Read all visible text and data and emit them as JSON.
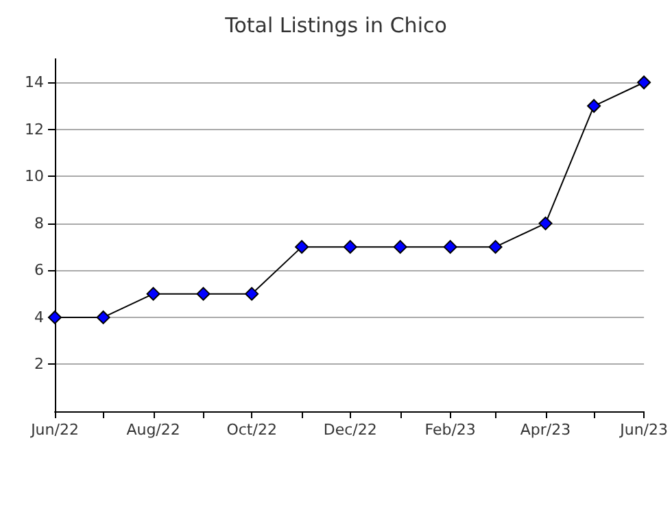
{
  "chart_data": {
    "type": "line",
    "title": "Total Listings in Chico",
    "x": [
      "2022-06",
      "2022-07",
      "2022-08",
      "2022-09",
      "2022-10",
      "2022-11",
      "2022-12",
      "2023-01",
      "2023-02",
      "2023-03",
      "2023-04",
      "2023-05",
      "2023-06"
    ],
    "series": [
      {
        "color": "#0000ff",
        "values": [
          4,
          4,
          5,
          5,
          5,
          7,
          7,
          7,
          7,
          7,
          8,
          13,
          14
        ]
      }
    ],
    "xlim": [
      "2022-06",
      "2023-06"
    ],
    "xticks": [
      {
        "value": "2022-06",
        "label": "Jun/22"
      },
      {
        "value": "2022-07",
        "label": null
      },
      {
        "value": "2022-08",
        "label": "Aug/22"
      },
      {
        "value": "2022-09",
        "label": null
      },
      {
        "value": "2022-10",
        "label": "Oct/22"
      },
      {
        "value": "2022-11",
        "label": null
      },
      {
        "value": "2022-12",
        "label": "Dec/22"
      },
      {
        "value": "2023-01",
        "label": null
      },
      {
        "value": "2023-02",
        "label": "Feb/23"
      },
      {
        "value": "2023-03",
        "label": null
      },
      {
        "value": "2023-04",
        "label": "Apr/23"
      },
      {
        "value": "2023-05",
        "label": null
      },
      {
        "value": "2023-06",
        "label": "Jun/23"
      }
    ],
    "ylim": [
      0,
      15
    ],
    "yticks": [
      2,
      4,
      6,
      8,
      10,
      12,
      14
    ],
    "grid": "y",
    "marker": "diamond",
    "line_style": "solid"
  }
}
